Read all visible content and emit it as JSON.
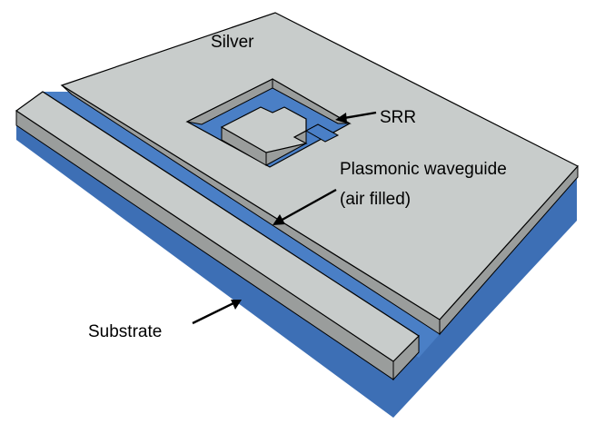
{
  "labels": {
    "silver": "Silver",
    "srr": "SRR",
    "waveguide_line1": "Plasmonic waveguide",
    "waveguide_line2": "(air filled)",
    "substrate": "Substrate"
  },
  "colors": {
    "silver_top": "#c8cccb",
    "silver_side": "#9a9d9c",
    "substrate_top": "#4a7fc6",
    "substrate_side": "#3d6fb5",
    "outline": "#000000",
    "background": "#ffffff"
  }
}
